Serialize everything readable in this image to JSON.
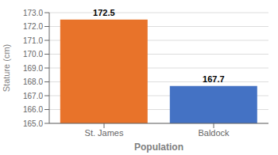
{
  "chart_data": {
    "type": "bar",
    "categories": [
      "St. James",
      "Baldock"
    ],
    "values": [
      172.5,
      167.7
    ],
    "colors": [
      "#E8732A",
      "#4472C4"
    ],
    "xlabel": "Population",
    "ylabel": "Stature (cm)",
    "ylim": [
      165.0,
      173.0
    ],
    "yticks": [
      {
        "value": 165.0,
        "label": "165.0"
      },
      {
        "value": 166.0,
        "label": "166.0"
      },
      {
        "value": 167.0,
        "label": "167.0"
      },
      {
        "value": 168.0,
        "label": "168.0"
      },
      {
        "value": 169.0,
        "label": "169.0"
      },
      {
        "value": 170.0,
        "label": "170.0"
      },
      {
        "value": 171.0,
        "label": "171.0"
      },
      {
        "value": 172.0,
        "label": "172.0"
      },
      {
        "value": 173.0,
        "label": "173.0"
      }
    ],
    "grid": true,
    "data_labels": true
  }
}
